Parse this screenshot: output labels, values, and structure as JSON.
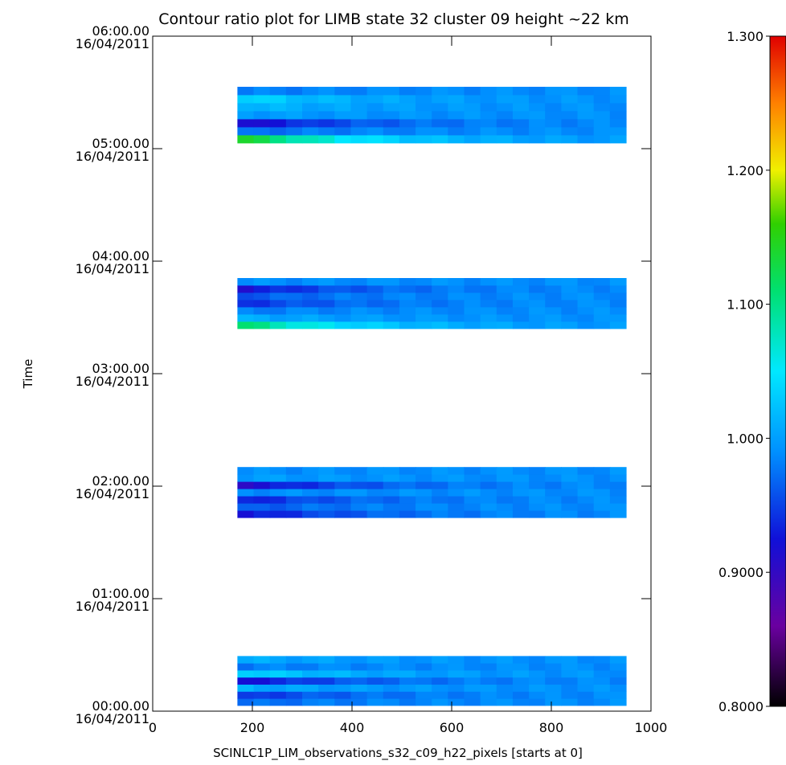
{
  "chart_data": {
    "type": "heatmap",
    "title": "Contour ratio plot for LIMB state 32 cluster 09 height ~22 km",
    "xlabel": "SCINLC1P_LIM_observations_s32_c09_h22_pixels [starts at 0]",
    "ylabel": "Time",
    "xlim": [
      0,
      1000
    ],
    "x_ticks": [
      "0",
      "200",
      "400",
      "600",
      "800",
      "1000"
    ],
    "x_tick_values": [
      0,
      200,
      400,
      600,
      800,
      1000
    ],
    "ylim_hours": [
      0,
      6
    ],
    "y_ticks": [
      {
        "hours": 0,
        "time": "00:00.00",
        "date": "16/04/2011"
      },
      {
        "hours": 1,
        "time": "01:00.00",
        "date": "16/04/2011"
      },
      {
        "hours": 2,
        "time": "02:00.00",
        "date": "16/04/2011"
      },
      {
        "hours": 3,
        "time": "03:00.00",
        "date": "16/04/2011"
      },
      {
        "hours": 4,
        "time": "04:00.00",
        "date": "16/04/2011"
      },
      {
        "hours": 5,
        "time": "05:00.00",
        "date": "16/04/2011"
      },
      {
        "hours": 6,
        "time": "06:00.00",
        "date": "16/04/2011"
      }
    ],
    "colorbar": {
      "range": [
        0.8,
        1.3
      ],
      "tick_labels": [
        "0.8000",
        "0.9000",
        "1.000",
        "1.100",
        "1.200",
        "1.300"
      ],
      "tick_values": [
        0.8,
        0.9,
        1.0,
        1.1,
        1.2,
        1.3
      ],
      "colormap": "rainbow (black-purple-blue-cyan-green-yellow-orange-red)"
    },
    "data_bands": [
      {
        "x_range": [
          170,
          950
        ],
        "t_range_hours": [
          0.05,
          0.49
        ],
        "rows": [
          0.98,
          0.95,
          1.02,
          0.93,
          1.05,
          0.99,
          1.02
        ]
      },
      {
        "x_range": [
          170,
          950
        ],
        "t_range_hours": [
          1.72,
          2.17
        ],
        "rows": [
          0.93,
          0.97,
          0.94,
          1.0,
          0.92,
          1.01,
          1.0
        ]
      },
      {
        "x_range": [
          170,
          950
        ],
        "t_range_hours": [
          3.4,
          3.85
        ],
        "rows": [
          1.12,
          1.02,
          0.99,
          0.95,
          0.97,
          0.93,
          1.0
        ]
      },
      {
        "x_range": [
          170,
          950
        ],
        "t_range_hours": [
          5.05,
          5.55
        ],
        "rows": [
          1.15,
          0.98,
          0.92,
          1.01,
          1.03,
          1.05,
          0.99
        ]
      }
    ]
  }
}
